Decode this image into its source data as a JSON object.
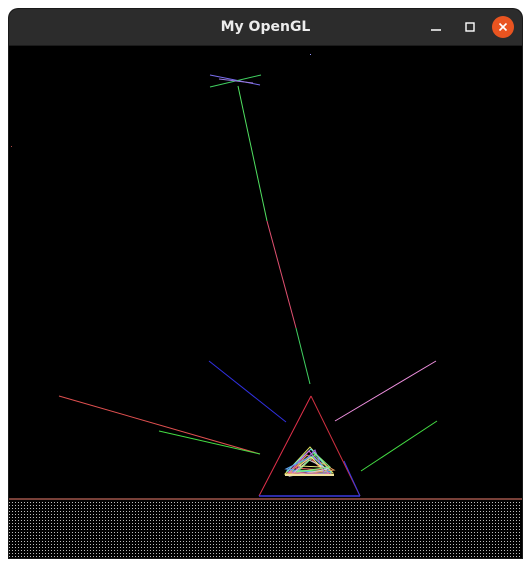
{
  "window": {
    "title": "My OpenGL"
  },
  "titlebar_buttons": {
    "minimize_icon": "minimize-icon",
    "maximize_icon": "maximize-icon",
    "close_icon": "close-icon",
    "close_color": "#e95420"
  },
  "scene": {
    "background_color": "#000000",
    "floor_color": "#f08070",
    "triangle_colors": [
      "#e0304a",
      "#3a3ae0"
    ],
    "ray_colors": [
      "#44e044",
      "#3030e0",
      "#e05050",
      "#f090e0",
      "#8070f0"
    ]
  }
}
